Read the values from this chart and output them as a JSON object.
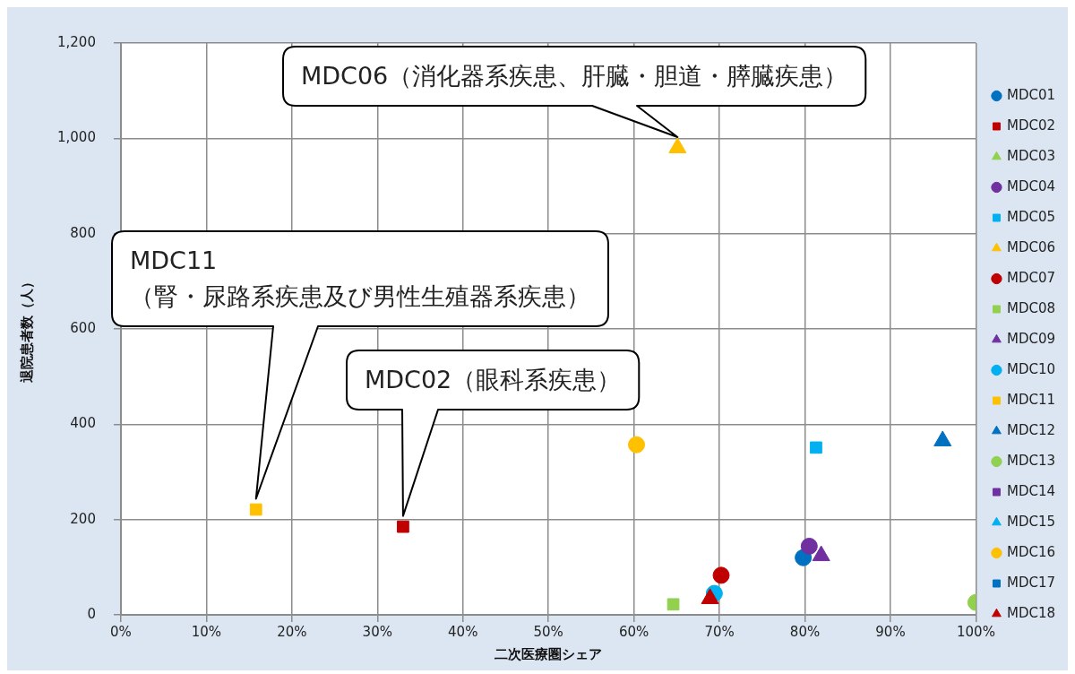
{
  "chart_data": {
    "type": "scatter",
    "xlabel": "二次医療圏シェア",
    "ylabel": "退院患者数（人）",
    "xlim": [
      0,
      100
    ],
    "xticks": [
      {
        "value": 0,
        "label": "0%"
      },
      {
        "value": 10,
        "label": "10%"
      },
      {
        "value": 20,
        "label": "20%"
      },
      {
        "value": 30,
        "label": "30%"
      },
      {
        "value": 40,
        "label": "40%"
      },
      {
        "value": 50,
        "label": "50%"
      },
      {
        "value": 60,
        "label": "60%"
      },
      {
        "value": 70,
        "label": "70%"
      },
      {
        "value": 80,
        "label": "80%"
      },
      {
        "value": 90,
        "label": "90%"
      },
      {
        "value": 100,
        "label": "100%"
      }
    ],
    "ylim": [
      0,
      1200
    ],
    "yticks": [
      0,
      {
        "value": 200,
        "label": "200"
      },
      {
        "value": 400,
        "label": "400"
      },
      {
        "value": 600,
        "label": "600"
      },
      {
        "value": 800,
        "label": "800"
      },
      {
        "value": 1000,
        "label": "1,000"
      },
      {
        "value": 1200,
        "label": "1,200"
      }
    ],
    "grid": true,
    "legend": "right",
    "series": [
      {
        "name": "MDC01",
        "color": "#0070c0",
        "marker": "circle",
        "x": [
          79.8
        ],
        "values": [
          120
        ]
      },
      {
        "name": "MDC02",
        "color": "#c00000",
        "marker": "square",
        "x": [
          33.0
        ],
        "values": [
          185
        ]
      },
      {
        "name": "MDC03",
        "color": "#92d050",
        "marker": "triangle"
      },
      {
        "name": "MDC04",
        "color": "#7030a0",
        "marker": "circle",
        "x": [
          80.5
        ],
        "values": [
          144
        ]
      },
      {
        "name": "MDC05",
        "color": "#00b0f0",
        "marker": "square",
        "x": [
          81.3
        ],
        "values": [
          351
        ]
      },
      {
        "name": "MDC06",
        "color": "#ffc000",
        "marker": "triangle",
        "x": [
          65.1
        ],
        "values": [
          980
        ]
      },
      {
        "name": "MDC07",
        "color": "#c00000",
        "marker": "circle",
        "x": [
          70.2
        ],
        "values": [
          83
        ]
      },
      {
        "name": "MDC08",
        "color": "#92d050",
        "marker": "square",
        "x": [
          64.6
        ],
        "values": [
          22
        ]
      },
      {
        "name": "MDC09",
        "color": "#7030a0",
        "marker": "triangle",
        "x": [
          81.9
        ],
        "values": [
          124
        ]
      },
      {
        "name": "MDC10",
        "color": "#00b0f0",
        "marker": "circle",
        "x": [
          69.4
        ],
        "values": [
          45
        ]
      },
      {
        "name": "MDC11",
        "color": "#ffc000",
        "marker": "square",
        "x": [
          15.8
        ],
        "values": [
          221
        ]
      },
      {
        "name": "MDC12",
        "color": "#0070c0",
        "marker": "triangle",
        "x": [
          96.1
        ],
        "values": [
          365
        ]
      },
      {
        "name": "MDC13",
        "color": "#92d050",
        "marker": "circle",
        "x": [
          100
        ],
        "values": [
          26
        ]
      },
      {
        "name": "MDC14",
        "color": "#7030a0",
        "marker": "square"
      },
      {
        "name": "MDC15",
        "color": "#00b0f0",
        "marker": "triangle"
      },
      {
        "name": "MDC16",
        "color": "#ffc000",
        "marker": "circle",
        "x": [
          60.3
        ],
        "values": [
          357
        ]
      },
      {
        "name": "MDC17",
        "color": "#0070c0",
        "marker": "square"
      },
      {
        "name": "MDC18",
        "color": "#c00000",
        "marker": "triangle",
        "x": [
          68.9
        ],
        "values": [
          34
        ]
      }
    ],
    "annotations": [
      {
        "text": "MDC06（消化器系疾患、肝臓・胆道・膵臓疾患）",
        "x": 65.1,
        "y": 980
      },
      "MDC11\n（腎・尿路系疾患及び男性生殖器系疾患）",
      "MDC02（眼科系疾患）"
    ]
  }
}
